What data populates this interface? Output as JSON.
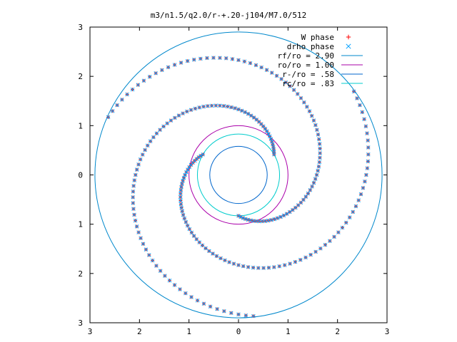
{
  "chart_data": {
    "type": "scatter",
    "title": "m3/n1.5/q2.0/r-+.20-j104/M7.0/512",
    "xlim": [
      -3,
      3
    ],
    "ylim": [
      -3,
      3
    ],
    "x_tick_values": [
      -3,
      -2,
      -1,
      0,
      1,
      2,
      3
    ],
    "x_tick_labels": [
      "3",
      "2",
      "1",
      "0",
      "1",
      "2",
      "3"
    ],
    "y_tick_values": [
      3,
      2,
      1,
      0,
      -1,
      -2,
      -3
    ],
    "y_tick_labels": [
      "3",
      "2",
      "1",
      "0",
      "1",
      "2",
      "3"
    ],
    "grid": false,
    "legend_position": "top-right",
    "series": [
      {
        "name": "W phase",
        "kind": "points",
        "marker": "plus",
        "color": "#ff0000",
        "arms": 3,
        "radius_range": [
          0.83,
          2.9
        ],
        "theta_start_deg": [
          150,
          270,
          30
        ],
        "turn_factor_deg_per_unit_radius": 120
      },
      {
        "name": "drho phase",
        "kind": "points",
        "marker": "x",
        "color": "#00a0ff",
        "arms": 3,
        "radius_range": [
          0.83,
          2.9
        ],
        "theta_start_deg": [
          150,
          270,
          30
        ],
        "turn_factor_deg_per_unit_radius": 120
      },
      {
        "name": "rf/ro = 2.90",
        "kind": "circle",
        "radius": 2.9,
        "color": "#0088cc"
      },
      {
        "name": "ro/ro = 1.00",
        "kind": "circle",
        "radius": 1.0,
        "color": "#aa00aa"
      },
      {
        "name": "r-/ro = .58",
        "kind": "circle",
        "radius": 0.58,
        "color": "#0066cc"
      },
      {
        "name": "rc/ro = .83",
        "kind": "circle",
        "radius": 0.83,
        "color": "#00cccc"
      }
    ]
  }
}
